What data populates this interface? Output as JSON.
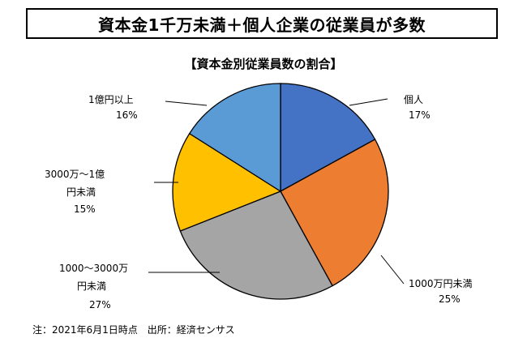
{
  "header": {
    "title": "資本金1千万未満＋個人企業の従業員が多数"
  },
  "chart_data": {
    "type": "pie",
    "title": "【資本金別従業員数の割合】",
    "slices": [
      {
        "label": "個人",
        "value": 17,
        "display": "17%",
        "color": "#4472C4"
      },
      {
        "label": "1000万円未満",
        "value": 25,
        "display": "25%",
        "color": "#ED7D31"
      },
      {
        "label": "1000～3000万円未満",
        "value": 27,
        "display": "27%",
        "color": "#A5A5A5"
      },
      {
        "label": "3000万～1億円未満",
        "value": 15,
        "display": "15%",
        "color": "#FFC000"
      },
      {
        "label": "1億円以上",
        "value": 16,
        "display": "16%",
        "color": "#5B9BD5"
      }
    ]
  },
  "footer": {
    "note": "注：2021年6月1日時点　出所：経済センサス"
  }
}
